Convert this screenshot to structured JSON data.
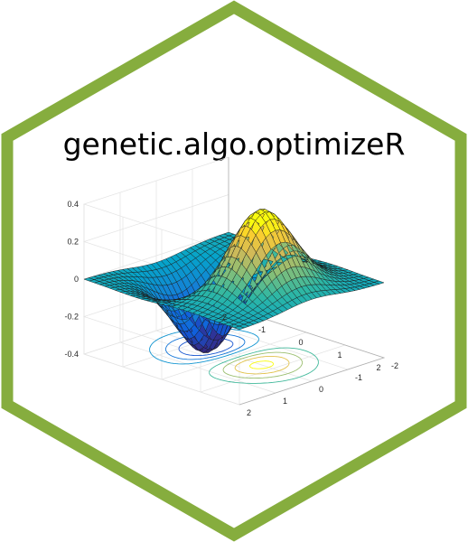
{
  "sticker": {
    "title": "genetic.algo.optimizeR",
    "border_color": "#86ad3e",
    "background_color": "#ffffff"
  },
  "chart_data": {
    "type": "surface",
    "title": "",
    "xlabel": "",
    "ylabel": "",
    "zlabel": "",
    "x_ticks": [
      "-2",
      "-1",
      "0",
      "1",
      "2"
    ],
    "y_ticks": [
      "-2",
      "-1",
      "0",
      "1",
      "2"
    ],
    "z_ticks": [
      "-0.4",
      "-0.2",
      "0",
      "0.2",
      "0.4"
    ],
    "xlim": [
      -2,
      2
    ],
    "ylim": [
      -2,
      2
    ],
    "zlim": [
      -0.4,
      0.4
    ],
    "grid": true,
    "colormap": "parula",
    "surface_function": "x*exp(-x^2-y^2)",
    "contour_levels": [
      -0.4,
      -0.3,
      -0.2,
      -0.1,
      0.1,
      0.2,
      0.3,
      0.4
    ],
    "features": [
      {
        "label": "minimum",
        "x": -0.71,
        "y": 0,
        "z": -0.43
      },
      {
        "label": "maximum",
        "x": 0.71,
        "y": 0,
        "z": 0.43
      }
    ]
  }
}
